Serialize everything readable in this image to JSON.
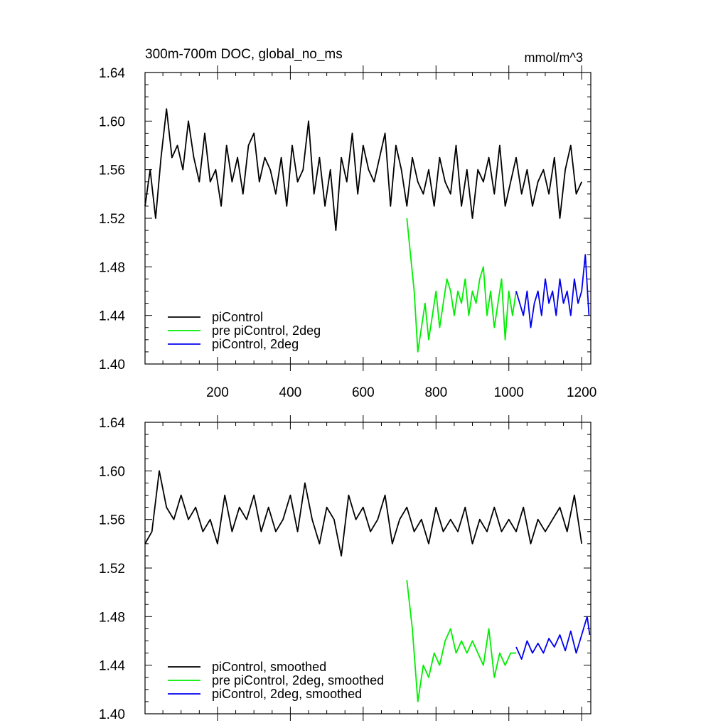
{
  "chart_data": [
    {
      "type": "line",
      "title": "300m-700m DOC, global_no_ms",
      "units": "mmol/m^3",
      "xlim": [
        1,
        1225
      ],
      "ylim": [
        1.4,
        1.64
      ],
      "x_ticks": [
        200,
        400,
        600,
        800,
        1000,
        1200
      ],
      "y_ticks": [
        "1.40",
        "1.44",
        "1.48",
        "1.52",
        "1.56",
        "1.60",
        "1.64"
      ],
      "legend_position": "bottom-left",
      "series": [
        {
          "name": "piControl",
          "color": "#000000",
          "x": [
            1,
            15,
            30,
            45,
            60,
            75,
            90,
            105,
            120,
            135,
            150,
            165,
            180,
            195,
            210,
            225,
            240,
            255,
            270,
            285,
            300,
            315,
            330,
            345,
            360,
            375,
            390,
            405,
            420,
            435,
            450,
            465,
            480,
            495,
            510,
            525,
            540,
            555,
            570,
            585,
            600,
            615,
            630,
            645,
            660,
            675,
            690,
            705,
            720,
            735,
            750,
            765,
            780,
            795,
            810,
            825,
            840,
            855,
            870,
            885,
            900,
            915,
            930,
            945,
            960,
            975,
            990,
            1005,
            1020,
            1035,
            1050,
            1065,
            1080,
            1095,
            1110,
            1125,
            1140,
            1155,
            1170,
            1185,
            1200
          ],
          "values": [
            1.53,
            1.56,
            1.52,
            1.57,
            1.61,
            1.57,
            1.58,
            1.56,
            1.6,
            1.57,
            1.55,
            1.59,
            1.55,
            1.56,
            1.53,
            1.58,
            1.55,
            1.57,
            1.54,
            1.58,
            1.59,
            1.55,
            1.57,
            1.56,
            1.54,
            1.57,
            1.53,
            1.58,
            1.55,
            1.56,
            1.6,
            1.54,
            1.57,
            1.53,
            1.56,
            1.51,
            1.57,
            1.55,
            1.59,
            1.54,
            1.58,
            1.56,
            1.55,
            1.57,
            1.59,
            1.53,
            1.58,
            1.56,
            1.53,
            1.57,
            1.55,
            1.54,
            1.56,
            1.53,
            1.57,
            1.55,
            1.54,
            1.58,
            1.53,
            1.56,
            1.52,
            1.56,
            1.55,
            1.57,
            1.54,
            1.58,
            1.53,
            1.55,
            1.57,
            1.54,
            1.56,
            1.53,
            1.55,
            1.56,
            1.54,
            1.57,
            1.52,
            1.56,
            1.58,
            1.54,
            1.55
          ]
        },
        {
          "name": "pre piControl, 2deg",
          "color": "#00ee00",
          "x": [
            720,
            730,
            740,
            750,
            760,
            770,
            780,
            790,
            800,
            810,
            820,
            830,
            840,
            850,
            860,
            870,
            880,
            890,
            900,
            910,
            920,
            930,
            940,
            950,
            960,
            970,
            980,
            990,
            1000,
            1010,
            1020
          ],
          "values": [
            1.52,
            1.49,
            1.46,
            1.41,
            1.43,
            1.45,
            1.42,
            1.44,
            1.46,
            1.43,
            1.45,
            1.47,
            1.46,
            1.44,
            1.46,
            1.45,
            1.47,
            1.44,
            1.46,
            1.45,
            1.47,
            1.48,
            1.44,
            1.46,
            1.43,
            1.45,
            1.47,
            1.42,
            1.46,
            1.44,
            1.46
          ]
        },
        {
          "name": "piControl, 2deg",
          "color": "#0000ee",
          "x": [
            1020,
            1030,
            1040,
            1050,
            1060,
            1070,
            1080,
            1090,
            1100,
            1110,
            1120,
            1130,
            1140,
            1150,
            1160,
            1170,
            1180,
            1190,
            1200,
            1210,
            1220
          ],
          "values": [
            1.46,
            1.45,
            1.44,
            1.46,
            1.43,
            1.45,
            1.46,
            1.44,
            1.47,
            1.45,
            1.46,
            1.44,
            1.47,
            1.45,
            1.46,
            1.44,
            1.47,
            1.45,
            1.46,
            1.49,
            1.44
          ]
        }
      ]
    },
    {
      "type": "line",
      "xlim": [
        1,
        1225
      ],
      "ylim": [
        1.4,
        1.64
      ],
      "y_ticks": [
        "1.40",
        "1.44",
        "1.48",
        "1.52",
        "1.56",
        "1.60",
        "1.64"
      ],
      "legend_position": "bottom-left",
      "series": [
        {
          "name": "piControl, smoothed",
          "color": "#000000",
          "x": [
            1,
            20,
            40,
            60,
            80,
            100,
            120,
            140,
            160,
            180,
            200,
            220,
            240,
            260,
            280,
            300,
            320,
            340,
            360,
            380,
            400,
            420,
            440,
            460,
            480,
            500,
            520,
            540,
            560,
            580,
            600,
            620,
            640,
            660,
            680,
            700,
            720,
            740,
            760,
            780,
            800,
            820,
            840,
            860,
            880,
            900,
            920,
            940,
            960,
            980,
            1000,
            1020,
            1040,
            1060,
            1080,
            1100,
            1120,
            1140,
            1160,
            1180,
            1200
          ],
          "values": [
            1.54,
            1.55,
            1.6,
            1.57,
            1.56,
            1.58,
            1.56,
            1.57,
            1.55,
            1.56,
            1.54,
            1.58,
            1.55,
            1.57,
            1.56,
            1.58,
            1.55,
            1.57,
            1.55,
            1.56,
            1.58,
            1.55,
            1.59,
            1.56,
            1.54,
            1.57,
            1.56,
            1.53,
            1.58,
            1.56,
            1.57,
            1.55,
            1.56,
            1.58,
            1.54,
            1.56,
            1.57,
            1.55,
            1.56,
            1.54,
            1.57,
            1.55,
            1.56,
            1.55,
            1.57,
            1.54,
            1.56,
            1.55,
            1.57,
            1.55,
            1.56,
            1.55,
            1.57,
            1.54,
            1.56,
            1.55,
            1.56,
            1.57,
            1.55,
            1.58,
            1.54
          ]
        },
        {
          "name": "pre piControl, 2deg, smoothed",
          "color": "#00ee00",
          "x": [
            720,
            735,
            750,
            765,
            780,
            795,
            810,
            825,
            840,
            855,
            870,
            885,
            900,
            915,
            930,
            945,
            960,
            975,
            990,
            1005,
            1020
          ],
          "values": [
            1.51,
            1.47,
            1.41,
            1.44,
            1.43,
            1.45,
            1.44,
            1.46,
            1.47,
            1.45,
            1.46,
            1.45,
            1.46,
            1.45,
            1.44,
            1.47,
            1.43,
            1.45,
            1.44,
            1.45,
            1.45
          ]
        },
        {
          "name": "piControl, 2deg, smoothed",
          "color": "#0000ee",
          "x": [
            1020,
            1035,
            1050,
            1065,
            1080,
            1095,
            1110,
            1125,
            1140,
            1155,
            1170,
            1185,
            1200,
            1215,
            1222
          ],
          "values": [
            1.455,
            1.445,
            1.46,
            1.45,
            1.458,
            1.45,
            1.462,
            1.455,
            1.465,
            1.452,
            1.468,
            1.45,
            1.465,
            1.48,
            1.465
          ]
        }
      ]
    }
  ]
}
